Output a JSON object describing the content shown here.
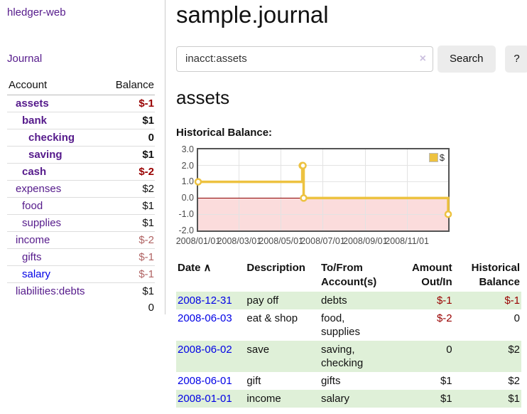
{
  "app": {
    "brand": "hledger-web"
  },
  "sidebar": {
    "journal_link": "Journal",
    "accounts": {
      "header_account": "Account",
      "header_balance": "Balance",
      "rows": [
        {
          "name": "assets",
          "balance": "$-1",
          "indent": 1,
          "bold": true,
          "name_color": "purple",
          "balance_color": "negstrong"
        },
        {
          "name": "bank",
          "balance": "$1",
          "indent": 2,
          "bold": true,
          "name_color": "purple",
          "balance_color": "normal"
        },
        {
          "name": "checking",
          "balance": "0",
          "indent": 3,
          "bold": true,
          "name_color": "purple",
          "balance_color": "normal"
        },
        {
          "name": "saving",
          "balance": "$1",
          "indent": 3,
          "bold": true,
          "name_color": "purple",
          "balance_color": "normal"
        },
        {
          "name": "cash",
          "balance": "$-2",
          "indent": 2,
          "bold": true,
          "name_color": "purple",
          "balance_color": "negstrong"
        },
        {
          "name": "expenses",
          "balance": "$2",
          "indent": 1,
          "bold": false,
          "name_color": "purple",
          "balance_color": "normal"
        },
        {
          "name": "food",
          "balance": "$1",
          "indent": 2,
          "bold": false,
          "name_color": "purple",
          "balance_color": "normal"
        },
        {
          "name": "supplies",
          "balance": "$1",
          "indent": 2,
          "bold": false,
          "name_color": "purple",
          "balance_color": "normal"
        },
        {
          "name": "income",
          "balance": "$-2",
          "indent": 1,
          "bold": false,
          "name_color": "purple",
          "balance_color": "negsoft"
        },
        {
          "name": "gifts",
          "balance": "$-1",
          "indent": 2,
          "bold": false,
          "name_color": "purple",
          "balance_color": "negsoft"
        },
        {
          "name": "salary",
          "balance": "$-1",
          "indent": 2,
          "bold": false,
          "name_color": "blue",
          "balance_color": "negsoft"
        },
        {
          "name": "liabilities:debts",
          "balance": "$1",
          "indent": 1,
          "bold": false,
          "name_color": "purple",
          "balance_color": "normal"
        }
      ],
      "total": "0"
    }
  },
  "main": {
    "title": "sample.journal",
    "search": {
      "value": "inacct:assets",
      "clear_icon": "×",
      "search_button": "Search",
      "help_button": "?"
    },
    "account_heading": "assets",
    "chart_heading": "Historical Balance:"
  },
  "chart_data": {
    "type": "line",
    "steps": true,
    "title": "Historical Balance:",
    "legend": [
      {
        "label": "$",
        "color": "#edc240"
      }
    ],
    "x_start": "2008-01-01",
    "x_end": "2008-12-31",
    "points": [
      {
        "date": "2008-01-01",
        "value": 1
      },
      {
        "date": "2008-06-01",
        "value": 2
      },
      {
        "date": "2008-06-02",
        "value": 2
      },
      {
        "date": "2008-06-03",
        "value": 0
      },
      {
        "date": "2008-12-31",
        "value": -1
      }
    ],
    "ylim": [
      -2,
      3
    ],
    "y_ticks": [
      3,
      2,
      1,
      0,
      -1,
      -2
    ],
    "y_tick_labels": [
      "3.0",
      "2.0",
      "1.0",
      "0.0",
      "-1.0",
      "-2.0"
    ],
    "x_tick_days": [
      0,
      60,
      121,
      182,
      244,
      305
    ],
    "x_tick_labels": [
      "2008/01/01",
      "2008/03/01",
      "2008/05/01",
      "2008/07/01",
      "2008/09/01",
      "2008/11/01"
    ],
    "grid": true,
    "legend_position": "top-right",
    "line_color": "#edc240",
    "marker_fill": "#ffffff",
    "zero_line_color": "#8b0000",
    "negative_region_fill": "#fbdcdc"
  },
  "register": {
    "headers": [
      {
        "label": "Date",
        "icon": "∧",
        "align": "left"
      },
      {
        "label": "Description",
        "align": "left"
      },
      {
        "label": "To/From Account(s)",
        "align": "left"
      },
      {
        "label": "Amount Out/In",
        "align": "right"
      },
      {
        "label": "Historical Balance",
        "align": "right"
      }
    ],
    "rows": [
      {
        "date": "2008-12-31",
        "description": "pay off",
        "accounts": "debts",
        "amount": "$-1",
        "amount_neg": true,
        "balance": "$-1",
        "balance_neg": true
      },
      {
        "date": "2008-06-03",
        "description": "eat & shop",
        "accounts": "food, supplies",
        "amount": "$-2",
        "amount_neg": true,
        "balance": "0",
        "balance_neg": false
      },
      {
        "date": "2008-06-02",
        "description": "save",
        "accounts": "saving, checking",
        "amount": "0",
        "amount_neg": false,
        "balance": "$2",
        "balance_neg": false
      },
      {
        "date": "2008-06-01",
        "description": "gift",
        "accounts": "gifts",
        "amount": "$1",
        "amount_neg": false,
        "balance": "$2",
        "balance_neg": false
      },
      {
        "date": "2008-01-01",
        "description": "income",
        "accounts": "salary",
        "amount": "$1",
        "amount_neg": false,
        "balance": "$1",
        "balance_neg": false
      }
    ]
  }
}
